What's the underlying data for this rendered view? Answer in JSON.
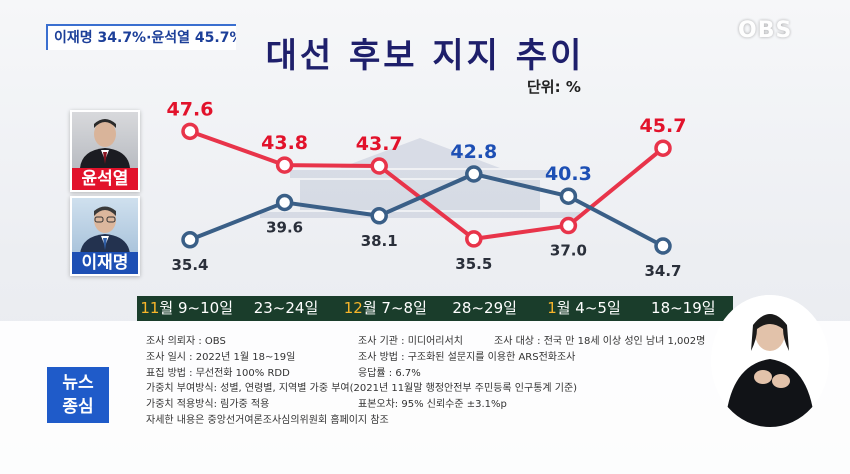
{
  "caption": "이재명 34.7%·윤석열 45.7%",
  "logo": "OBS",
  "title": "대선 후보 지지 추이",
  "unit_label": "단위: %",
  "candidates": [
    {
      "name": "윤석열",
      "color": "#e2122b"
    },
    {
      "name": "이재명",
      "color": "#1d4fb4"
    }
  ],
  "dates": [
    {
      "prefix": "11",
      "rest": "월 9~10일"
    },
    {
      "prefix": "",
      "rest": "23~24일"
    },
    {
      "prefix": "12",
      "rest": "월 7~8일"
    },
    {
      "prefix": "",
      "rest": "28~29일"
    },
    {
      "prefix": "1",
      "rest": "월 4~5일"
    },
    {
      "prefix": "",
      "rest": "18~19일"
    }
  ],
  "chart_data": {
    "type": "line",
    "title": "대선 후보 지지 추이",
    "ylabel": "단위: %",
    "categories": [
      "11월 9~10일",
      "23~24일",
      "12월 7~8일",
      "28~29일",
      "1월 4~5일",
      "18~19일"
    ],
    "series": [
      {
        "name": "윤석열",
        "color": "#e8344a",
        "labelColor": "#e2122b",
        "values": [
          47.6,
          43.8,
          43.7,
          35.5,
          37.0,
          45.7
        ],
        "labels": [
          "47.6",
          "43.8",
          "43.7",
          "35.5",
          "37.0",
          "45.7"
        ]
      },
      {
        "name": "이재명",
        "color": "#3a5f87",
        "labelColor": "#1d4fb4",
        "values": [
          35.4,
          39.6,
          38.1,
          42.8,
          40.3,
          34.7
        ],
        "labels": [
          "35.4",
          "39.6",
          "38.1",
          "42.8",
          "40.3",
          "34.7"
        ]
      }
    ],
    "ylim": [
      32,
      50
    ],
    "grid": false,
    "legend": "left"
  },
  "info": {
    "requester": "조사 의뢰자 : OBS",
    "org": "조사 기관 : 미디어리서치",
    "target": "조사 대상 : 전국 만 18세 이상 성인 남녀 1,002명",
    "date": "조사 일시 : 2022년 1월 18~19일",
    "method": "조사 방법 : 구조화된 설문지를 이용한 ARS전화조사",
    "sampling": "표집 방법 : 무선전화 100% RDD",
    "response": "응답률 : 6.7%",
    "weighting": "가중치 부여방식: 성별, 연령별, 지역별 가중 부여(2021년 11월말 행정안전부 주민등록 인구통계 기준)",
    "weight_method": "가중치 적용방식: 림가중 적용",
    "error": "표본오차: 95% 신뢰수준 ±3.1%p",
    "detail": "자세한 내용은 중앙선거여론조사심의위원회 홈페이지 참조"
  },
  "news_badge": [
    "뉴스",
    "종심"
  ]
}
